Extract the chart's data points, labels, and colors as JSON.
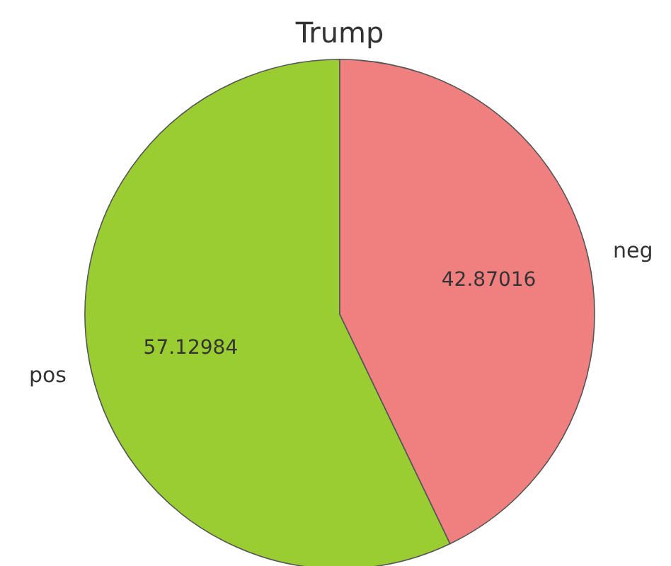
{
  "chart_data": {
    "type": "pie",
    "title": "Trump",
    "categories": [
      "pos",
      "neg"
    ],
    "values": [
      57.12984,
      42.87016
    ],
    "colors": [
      "#9acd32",
      "#f08080"
    ],
    "data_labels": true
  }
}
